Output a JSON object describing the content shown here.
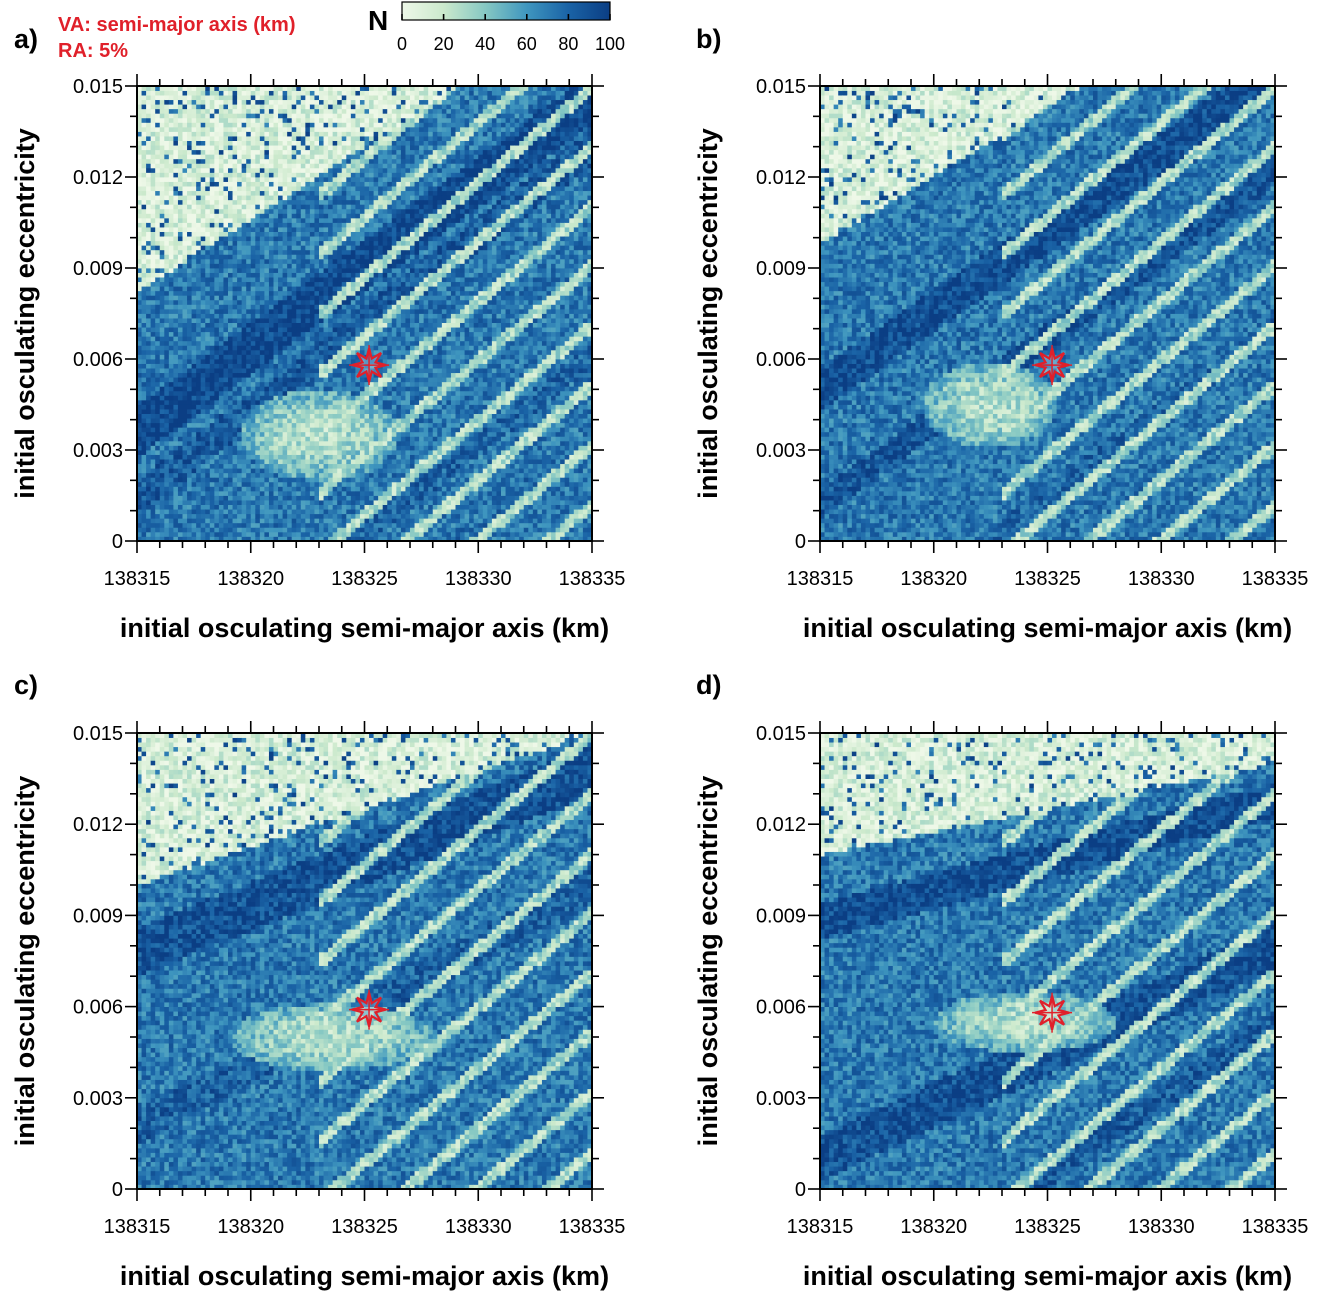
{
  "annotation": {
    "line1": "VA: semi-major axis (km)",
    "line2": "RA: 5%",
    "color": "#e0202a"
  },
  "colorbar": {
    "title": "N",
    "range": [
      0,
      100
    ],
    "tick_labels": [
      "0",
      "20",
      "40",
      "60",
      "80",
      "100"
    ],
    "colors": [
      "#e9f6e3",
      "#bfe4c7",
      "#7fc4c3",
      "#3f96bf",
      "#1a63a6",
      "#0b3e84"
    ]
  },
  "chart_data": [
    {
      "type": "heatmap",
      "panel": "a)",
      "xlabel": "initial osculating semi-major axis (km)",
      "ylabel": "initial osculating eccentricity",
      "xlim": [
        138315,
        138335
      ],
      "ylim": [
        0,
        0.015
      ],
      "x_tick_labels": [
        "138315",
        "138320",
        "138325",
        "138330",
        "138335"
      ],
      "y_tick_labels": [
        "0",
        "0.003",
        "0.006",
        "0.009",
        "0.012",
        "0.015"
      ],
      "marker": {
        "x": 138325.2,
        "y": 0.0058,
        "symbol": "star",
        "color": "#e0202a"
      },
      "bands": [
        {
          "e0": 0.0036,
          "slope": 0.00055,
          "width": 0.0017,
          "value": 95
        },
        {
          "e0": 0.0014,
          "slope": 0.00058,
          "width": 0.0012,
          "value": 85
        },
        {
          "e0": -0.0055,
          "slope": 0.00058,
          "width": 0.0008,
          "value": 80
        },
        {
          "e0": -0.0085,
          "slope": 0.0006,
          "width": 0.0006,
          "value": 75
        }
      ],
      "upper_boundary": {
        "e0": 0.0082,
        "slope": 0.00048
      },
      "light_spot": {
        "x": 138323,
        "y": 0.0035,
        "rx": 3.5,
        "ry": 0.0015
      }
    },
    {
      "type": "heatmap",
      "panel": "b)",
      "xlabel": "initial osculating semi-major axis (km)",
      "ylabel": "initial osculating eccentricity",
      "xlim": [
        138315,
        138335
      ],
      "ylim": [
        0,
        0.015
      ],
      "x_tick_labels": [
        "138315",
        "138320",
        "138325",
        "138330",
        "138335"
      ],
      "y_tick_labels": [
        "0",
        "0.003",
        "0.006",
        "0.009",
        "0.012",
        "0.015"
      ],
      "marker": {
        "x": 138325.2,
        "y": 0.0058,
        "symbol": "star",
        "color": "#e0202a"
      },
      "bands": [
        {
          "e0": 0.005,
          "slope": 0.00052,
          "width": 0.0014,
          "value": 92
        },
        {
          "e0": 0.0012,
          "slope": 0.00055,
          "width": 0.001,
          "value": 88
        },
        {
          "e0": -0.004,
          "slope": 0.00055,
          "width": 0.0007,
          "value": 80
        }
      ],
      "upper_boundary": {
        "e0": 0.0098,
        "slope": 0.00045
      },
      "light_spot": {
        "x": 138322.5,
        "y": 0.0045,
        "rx": 3.0,
        "ry": 0.0014
      }
    },
    {
      "type": "heatmap",
      "panel": "c)",
      "xlabel": "initial osculating semi-major axis (km)",
      "ylabel": "initial osculating eccentricity",
      "xlim": [
        138315,
        138335
      ],
      "ylim": [
        0,
        0.015
      ],
      "x_tick_labels": [
        "138315",
        "138320",
        "138325",
        "138330",
        "138335"
      ],
      "y_tick_labels": [
        "0",
        "0.003",
        "0.006",
        "0.009",
        "0.012",
        "0.015"
      ],
      "marker": {
        "x": 138325.2,
        "y": 0.0059,
        "symbol": "star",
        "color": "#e0202a"
      },
      "bands": [
        {
          "e0": 0.0078,
          "slope": 0.0003,
          "width": 0.0016,
          "value": 90
        },
        {
          "e0": 0.002,
          "slope": 0.0004,
          "width": 0.0012,
          "value": 82
        }
      ],
      "upper_boundary": {
        "e0": 0.01,
        "slope": 0.00025
      },
      "light_spot": {
        "x": 138323.5,
        "y": 0.005,
        "rx": 4.5,
        "ry": 0.0011
      }
    },
    {
      "type": "heatmap",
      "panel": "d)",
      "xlabel": "initial osculating semi-major axis (km)",
      "ylabel": "initial osculating eccentricity",
      "xlim": [
        138315,
        138335
      ],
      "ylim": [
        0,
        0.015
      ],
      "x_tick_labels": [
        "138315",
        "138320",
        "138325",
        "138330",
        "138335"
      ],
      "y_tick_labels": [
        "0",
        "0.003",
        "0.006",
        "0.009",
        "0.012",
        "0.015"
      ],
      "marker": {
        "x": 138325.2,
        "y": 0.0058,
        "symbol": "star",
        "color": "#e0202a"
      },
      "bands": [
        {
          "e0": 0.0088,
          "slope": 0.0002,
          "width": 0.0012,
          "value": 92
        },
        {
          "e0": 0.001,
          "slope": 0.00035,
          "width": 0.0015,
          "value": 90
        },
        {
          "e0": -0.0045,
          "slope": 0.0005,
          "width": 0.0009,
          "value": 85
        }
      ],
      "upper_boundary": {
        "e0": 0.011,
        "slope": 0.00015
      },
      "light_spot": {
        "x": 138324,
        "y": 0.0055,
        "rx": 4.0,
        "ry": 0.001
      }
    }
  ]
}
